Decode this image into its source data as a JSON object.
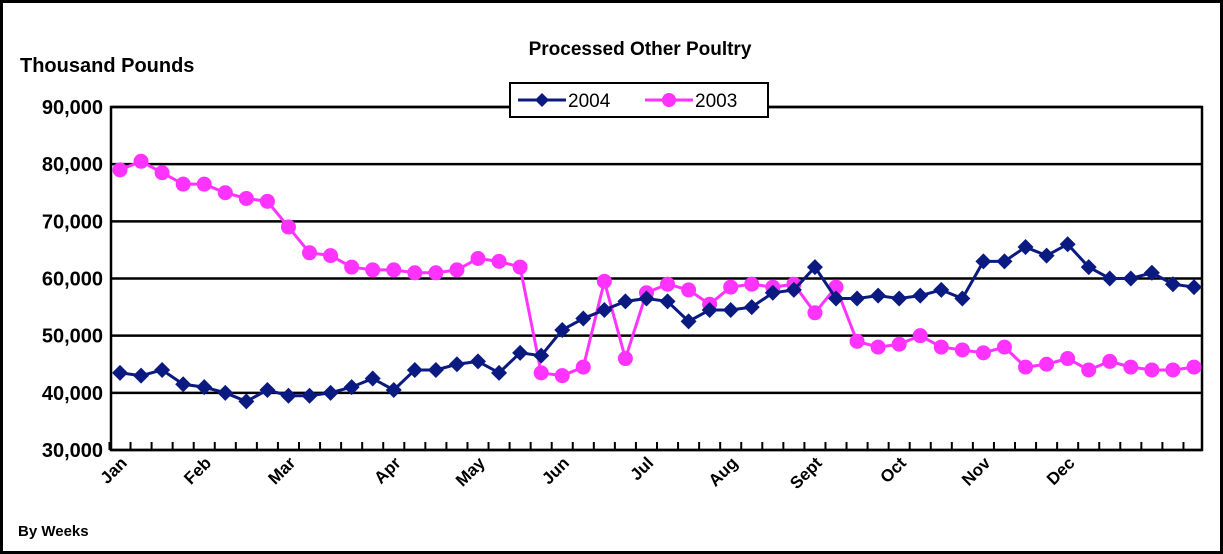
{
  "chart_data": {
    "type": "line",
    "title": "Processed Other Poultry",
    "y_label": "Thousand Pounds",
    "x_label": "By Weeks",
    "categories": [
      "Jan",
      null,
      null,
      null,
      "Feb",
      null,
      null,
      null,
      "Mar",
      null,
      null,
      null,
      null,
      "Apr",
      null,
      null,
      null,
      "May",
      null,
      null,
      null,
      "Jun",
      null,
      null,
      null,
      "Jul",
      null,
      null,
      null,
      "Aug",
      null,
      null,
      null,
      "Sept",
      null,
      null,
      null,
      "Oct",
      null,
      null,
      null,
      "Nov",
      null,
      null,
      null,
      "Dec",
      null,
      null,
      null,
      null,
      null,
      null
    ],
    "series": [
      {
        "name": "2004",
        "color": "#0a1a80",
        "marker": "diamond",
        "values": [
          43500,
          43000,
          44000,
          41500,
          41000,
          40000,
          38500,
          40500,
          39500,
          39500,
          40000,
          41000,
          42500,
          40500,
          44000,
          44000,
          45000,
          45500,
          43500,
          47000,
          46500,
          51000,
          53000,
          54500,
          56000,
          56500,
          56000,
          52500,
          54500,
          54500,
          55000,
          57500,
          58000,
          62000,
          56500,
          56500,
          57000,
          56500,
          57000,
          58000,
          56500,
          63000,
          63000,
          65500,
          64000,
          66000,
          62000,
          60000,
          60000,
          61000,
          59000,
          58500
        ]
      },
      {
        "name": "2003",
        "color": "#ff33ff",
        "marker": "circle",
        "values": [
          79000,
          80500,
          78500,
          76500,
          76500,
          75000,
          74000,
          73500,
          69000,
          64500,
          64000,
          62000,
          61500,
          61500,
          61000,
          61000,
          61500,
          63500,
          63000,
          62000,
          43500,
          43000,
          44500,
          59500,
          46000,
          57500,
          59000,
          58000,
          55500,
          58500,
          59000,
          58500,
          59000,
          54000,
          58500,
          49000,
          48000,
          48500,
          50000,
          48000,
          47500,
          47000,
          48000,
          44500,
          45000,
          46000,
          44000,
          45500,
          44500,
          44000,
          44000,
          44500
        ]
      }
    ],
    "ylim": [
      30000,
      90000
    ],
    "yticks": [
      {
        "value": 30000,
        "label": "30,000"
      },
      {
        "value": 40000,
        "label": "40,000"
      },
      {
        "value": 50000,
        "label": "50,000"
      },
      {
        "value": 60000,
        "label": "60,000"
      },
      {
        "value": 70000,
        "label": "70,000"
      },
      {
        "value": 80000,
        "label": "80,000"
      },
      {
        "value": 90000,
        "label": "90,000"
      }
    ],
    "grid": true,
    "legend": "top"
  }
}
